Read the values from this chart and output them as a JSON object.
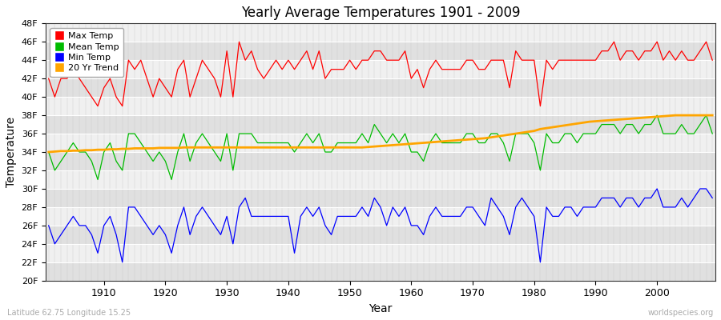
{
  "title": "Yearly Average Temperatures 1901 - 2009",
  "xlabel": "Year",
  "ylabel": "Temperature",
  "lat_lon_label": "Latitude 62.75 Longitude 15.25",
  "watermark": "worldspecies.org",
  "start_year": 1901,
  "end_year": 2009,
  "yticks": [
    "20F",
    "22F",
    "24F",
    "26F",
    "28F",
    "30F",
    "32F",
    "34F",
    "36F",
    "38F",
    "40F",
    "42F",
    "44F",
    "46F",
    "48F"
  ],
  "ytick_vals": [
    20,
    22,
    24,
    26,
    28,
    30,
    32,
    34,
    36,
    38,
    40,
    42,
    44,
    46,
    48
  ],
  "ylim": [
    20,
    48
  ],
  "xlim": [
    1901,
    2009
  ],
  "colors": {
    "max": "#ff0000",
    "mean": "#00bb00",
    "min": "#0000ff",
    "trend": "#ffa500",
    "fig_bg": "#ffffff",
    "plot_bg_light": "#f0f0f0",
    "plot_bg_dark": "#e0e0e0",
    "grid_v": "#cccccc",
    "grid_h": "#ffffff"
  },
  "legend": {
    "max": "Max Temp",
    "mean": "Mean Temp",
    "min": "Min Temp",
    "trend": "20 Yr Trend"
  },
  "max_temps": [
    42,
    40,
    42,
    42,
    43,
    42,
    41,
    40,
    39,
    41,
    42,
    40,
    39,
    44,
    43,
    44,
    42,
    40,
    42,
    41,
    40,
    43,
    44,
    40,
    42,
    44,
    43,
    42,
    40,
    45,
    40,
    46,
    44,
    45,
    43,
    42,
    43,
    44,
    43,
    44,
    43,
    44,
    45,
    43,
    45,
    42,
    43,
    43,
    43,
    44,
    43,
    44,
    44,
    45,
    45,
    44,
    44,
    44,
    45,
    42,
    43,
    41,
    43,
    44,
    43,
    43,
    43,
    43,
    44,
    44,
    43,
    43,
    44,
    44,
    44,
    41,
    45,
    44,
    44,
    44,
    39,
    44,
    43,
    44,
    44,
    44,
    44,
    44,
    44,
    44,
    45,
    45,
    46,
    44,
    45,
    45,
    44,
    45,
    45,
    46,
    44,
    45,
    44,
    45,
    44,
    44,
    45,
    46,
    44
  ],
  "mean_temps": [
    34,
    32,
    33,
    34,
    35,
    34,
    34,
    33,
    31,
    34,
    35,
    33,
    32,
    36,
    36,
    35,
    34,
    33,
    34,
    33,
    31,
    34,
    36,
    33,
    35,
    36,
    35,
    34,
    33,
    36,
    32,
    36,
    36,
    36,
    35,
    35,
    35,
    35,
    35,
    35,
    34,
    35,
    36,
    35,
    36,
    34,
    34,
    35,
    35,
    35,
    35,
    36,
    35,
    37,
    36,
    35,
    36,
    35,
    36,
    34,
    34,
    33,
    35,
    36,
    35,
    35,
    35,
    35,
    36,
    36,
    35,
    35,
    36,
    36,
    35,
    33,
    36,
    36,
    36,
    35,
    32,
    36,
    35,
    35,
    36,
    36,
    35,
    36,
    36,
    36,
    37,
    37,
    37,
    36,
    37,
    37,
    36,
    37,
    37,
    38,
    36,
    36,
    36,
    37,
    36,
    36,
    37,
    38,
    36
  ],
  "min_temps": [
    26,
    24,
    25,
    26,
    27,
    26,
    26,
    25,
    23,
    26,
    27,
    25,
    22,
    28,
    28,
    27,
    26,
    25,
    26,
    25,
    23,
    26,
    28,
    25,
    27,
    28,
    27,
    26,
    25,
    27,
    24,
    28,
    29,
    27,
    27,
    27,
    27,
    27,
    27,
    27,
    23,
    27,
    28,
    27,
    28,
    26,
    25,
    27,
    27,
    27,
    27,
    28,
    27,
    29,
    28,
    26,
    28,
    27,
    28,
    26,
    26,
    25,
    27,
    28,
    27,
    27,
    27,
    27,
    28,
    28,
    27,
    26,
    29,
    28,
    27,
    25,
    28,
    29,
    28,
    27,
    22,
    28,
    27,
    27,
    28,
    28,
    27,
    28,
    28,
    28,
    29,
    29,
    29,
    28,
    29,
    29,
    28,
    29,
    29,
    30,
    28,
    28,
    28,
    29,
    28,
    29,
    30,
    30,
    29
  ],
  "trend_temps": [
    34.0,
    34.05,
    34.1,
    34.1,
    34.15,
    34.15,
    34.2,
    34.2,
    34.25,
    34.25,
    34.3,
    34.3,
    34.35,
    34.35,
    34.4,
    34.4,
    34.4,
    34.4,
    34.45,
    34.45,
    34.45,
    34.45,
    34.5,
    34.5,
    34.5,
    34.5,
    34.5,
    34.5,
    34.5,
    34.5,
    34.5,
    34.5,
    34.5,
    34.5,
    34.5,
    34.5,
    34.5,
    34.5,
    34.5,
    34.5,
    34.5,
    34.5,
    34.5,
    34.5,
    34.5,
    34.5,
    34.5,
    34.5,
    34.5,
    34.5,
    34.5,
    34.5,
    34.55,
    34.6,
    34.65,
    34.7,
    34.75,
    34.8,
    34.85,
    34.9,
    34.95,
    35.0,
    35.05,
    35.1,
    35.15,
    35.2,
    35.25,
    35.3,
    35.35,
    35.4,
    35.45,
    35.5,
    35.6,
    35.7,
    35.8,
    35.9,
    36.0,
    36.1,
    36.2,
    36.3,
    36.5,
    36.6,
    36.7,
    36.8,
    36.9,
    37.0,
    37.1,
    37.2,
    37.3,
    37.35,
    37.4,
    37.45,
    37.5,
    37.55,
    37.6,
    37.65,
    37.7,
    37.75,
    37.8,
    37.85,
    37.9,
    37.95,
    38.0,
    38.0,
    38.0,
    38.0,
    38.0,
    38.0,
    38.0
  ]
}
